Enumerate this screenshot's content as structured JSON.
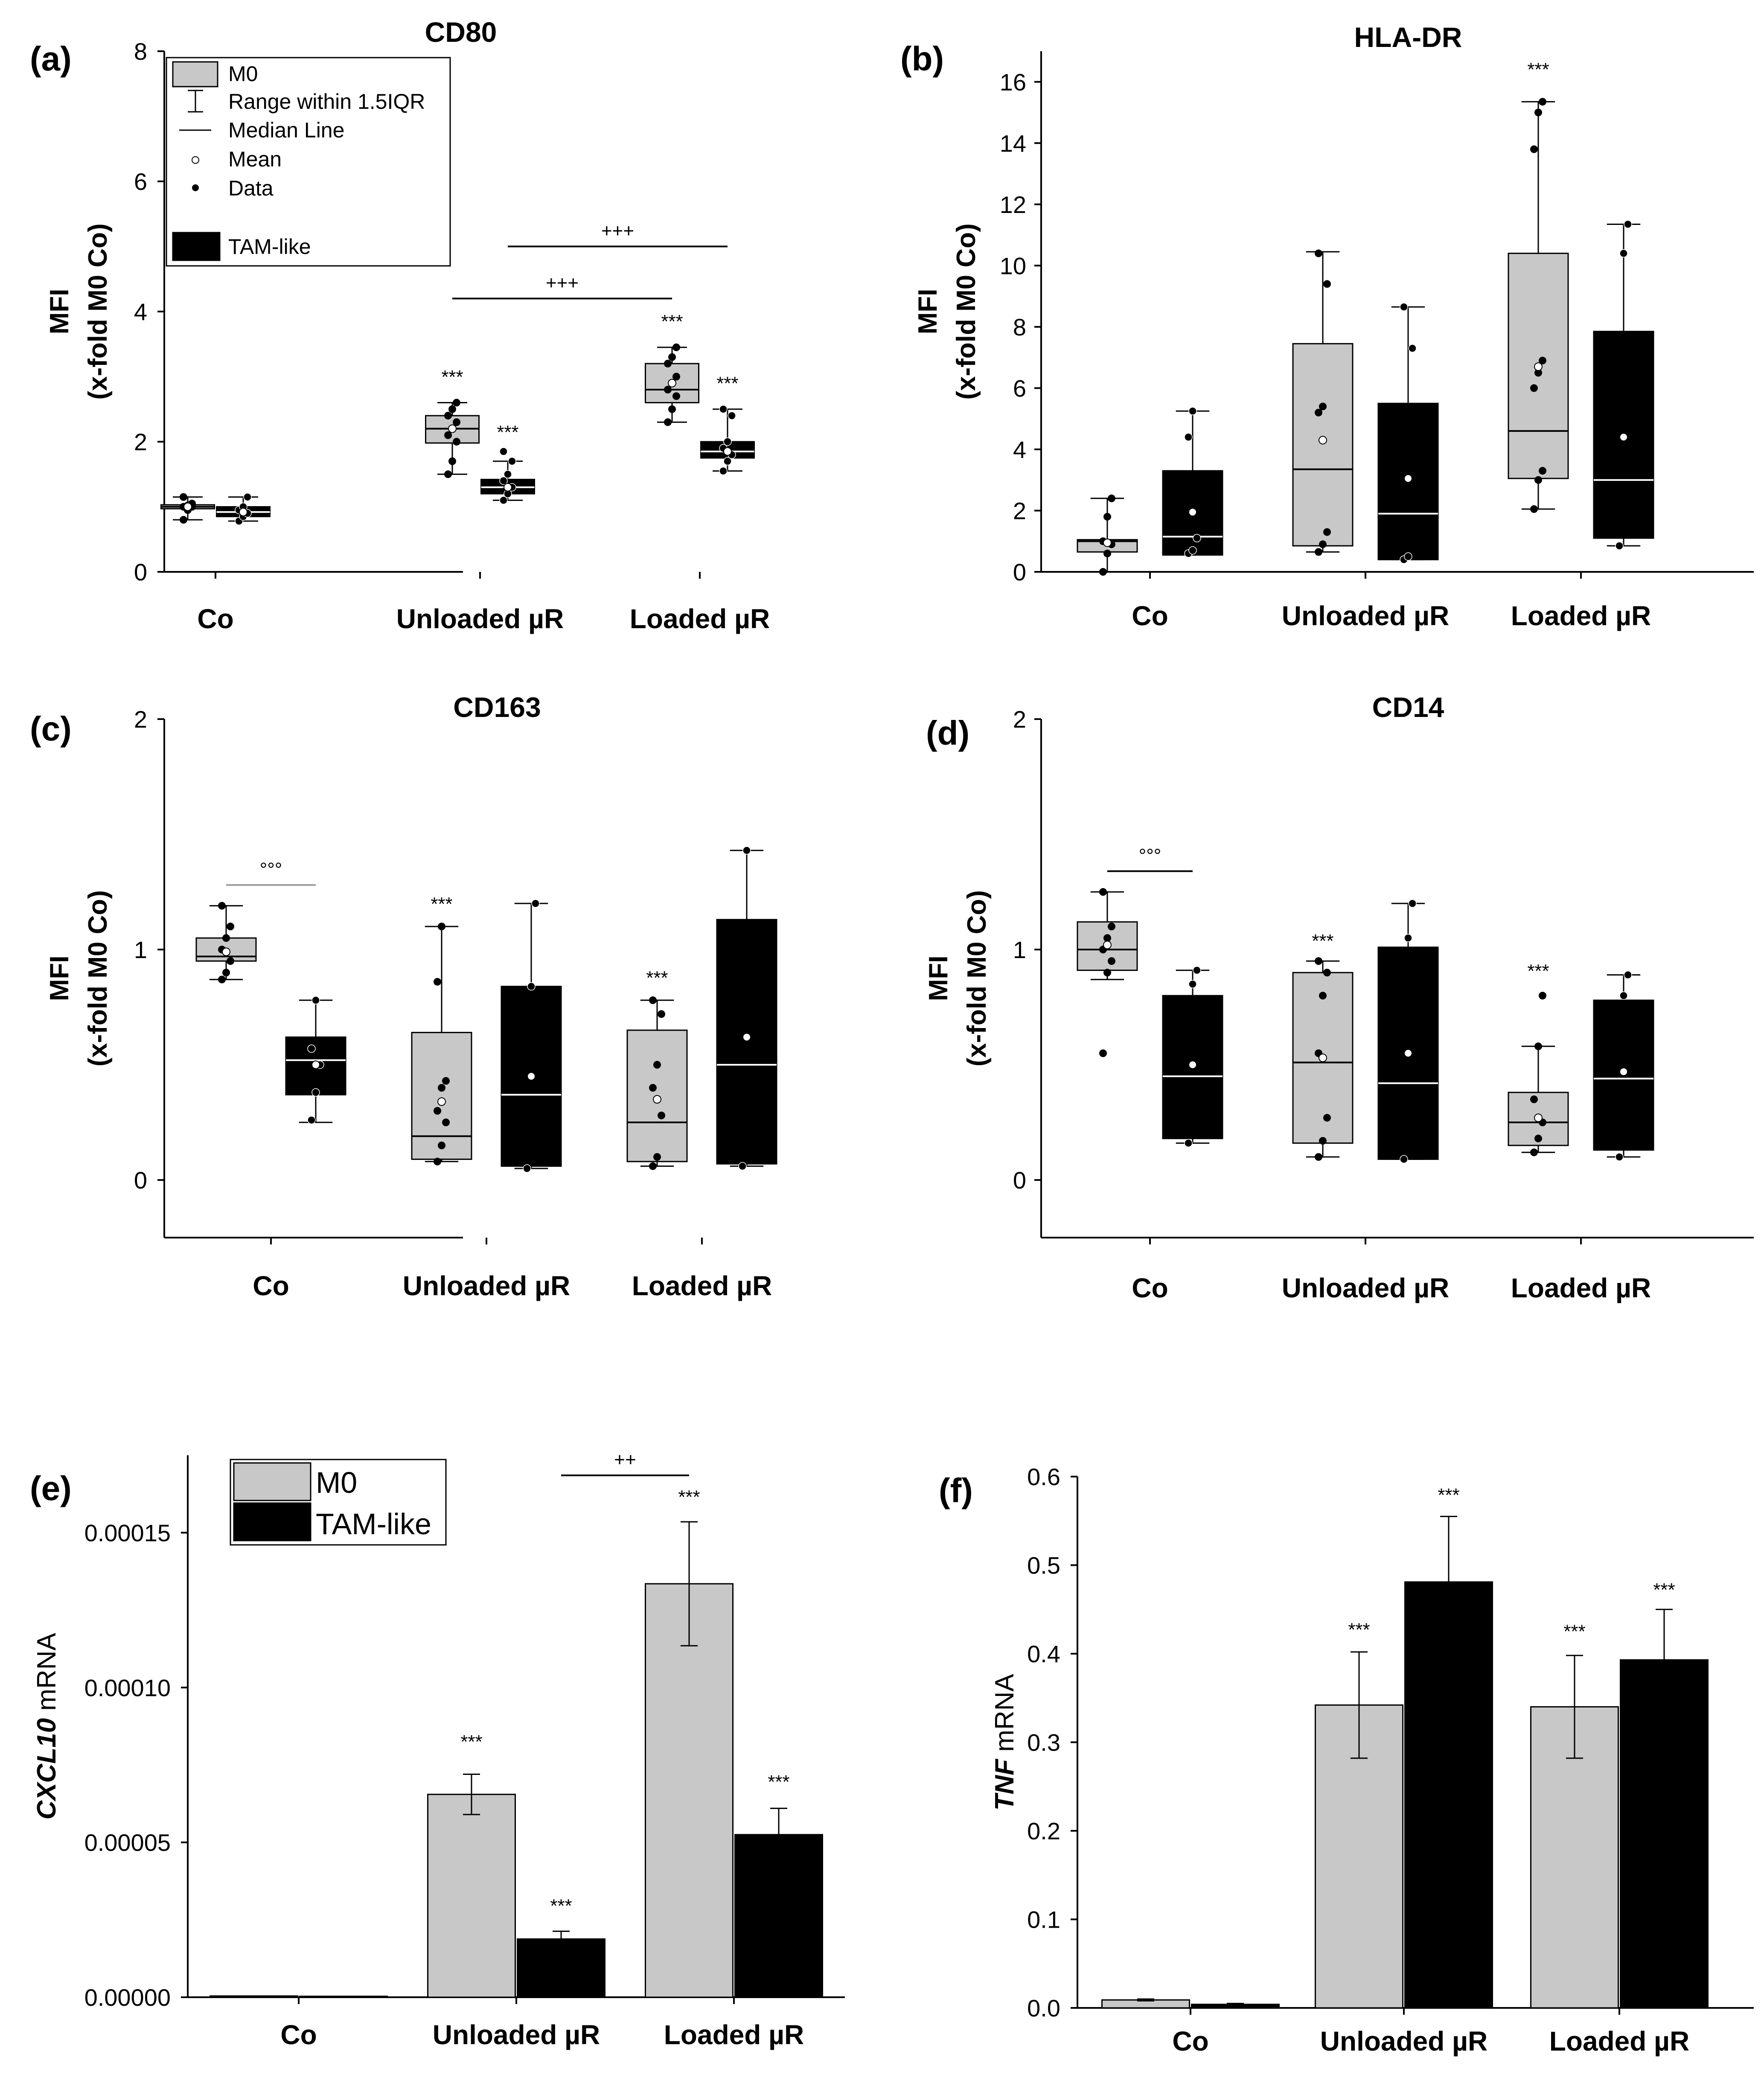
{
  "figure": {
    "legend_box": {
      "entries": [
        "M0",
        "Range within 1.5IQR",
        "Median Line",
        "Mean",
        "Data",
        "TAM-like"
      ]
    },
    "legend_bar": {
      "entries": [
        "M0",
        "TAM-like"
      ]
    }
  },
  "colors": {
    "m0": "#c8c8c8",
    "tam": "#000000",
    "axis": "#000000",
    "sig_line_c": "#9a9a9a"
  },
  "chart_data": [
    {
      "panel": "(a)",
      "type": "box",
      "title": "CD80",
      "ylabel": "MFI",
      "ylabel2": "(x-fold M0 Co)",
      "ylim": [
        0,
        8
      ],
      "yticks": [
        "0",
        "2",
        "4",
        "6",
        "8"
      ],
      "ytick_values": [
        0,
        2,
        4,
        6,
        8
      ],
      "categories": [
        "Co",
        "Unloaded µR",
        "Loaded µR"
      ],
      "series": [
        {
          "name": "M0",
          "boxes": [
            {
              "q1": 0.97,
              "med": 1.0,
              "q3": 1.03,
              "wlo": 0.8,
              "whi": 1.15,
              "mean": 1.0,
              "points": [
                0.8,
                0.95,
                1.0,
                1.0,
                1.02,
                1.05,
                1.15
              ]
            },
            {
              "q1": 1.98,
              "med": 2.2,
              "q3": 2.4,
              "wlo": 1.5,
              "whi": 2.6,
              "mean": 2.2,
              "points": [
                1.5,
                1.7,
                2.0,
                2.1,
                2.2,
                2.3,
                2.4,
                2.5,
                2.6
              ]
            },
            {
              "q1": 2.6,
              "med": 2.8,
              "q3": 3.2,
              "wlo": 2.3,
              "whi": 3.45,
              "mean": 2.9,
              "points": [
                2.3,
                2.5,
                2.7,
                2.8,
                2.9,
                3.0,
                3.2,
                3.3,
                3.45
              ]
            }
          ]
        },
        {
          "name": "TAM-like",
          "boxes": [
            {
              "q1": 0.85,
              "med": 0.92,
              "q3": 1.0,
              "wlo": 0.78,
              "whi": 1.15,
              "mean": 0.92,
              "points": [
                0.78,
                0.85,
                0.9,
                0.95,
                1.0,
                1.15
              ]
            },
            {
              "q1": 1.2,
              "med": 1.3,
              "q3": 1.42,
              "wlo": 1.1,
              "whi": 1.7,
              "mean": 1.3,
              "points": [
                1.1,
                1.2,
                1.3,
                1.4,
                1.5,
                1.7,
                1.85
              ]
            },
            {
              "q1": 1.75,
              "med": 1.85,
              "q3": 2.0,
              "wlo": 1.55,
              "whi": 2.5,
              "mean": 1.85,
              "points": [
                1.55,
                1.7,
                1.8,
                1.9,
                2.0,
                2.4,
                2.5
              ]
            }
          ]
        }
      ],
      "annotations": [
        {
          "text": "***",
          "cat": 1,
          "series": 0,
          "y": 2.9
        },
        {
          "text": "***",
          "cat": 1,
          "series": 1,
          "y": 2.05
        },
        {
          "text": "***",
          "cat": 2,
          "series": 0,
          "y": 3.75
        },
        {
          "text": "***",
          "cat": 2,
          "series": 1,
          "y": 2.8
        }
      ],
      "brackets": [
        {
          "text": "+++",
          "from": [
            1,
            0
          ],
          "to": [
            2,
            0
          ],
          "y": 4.2
        },
        {
          "text": "+++",
          "from": [
            1,
            1
          ],
          "to": [
            2,
            1
          ],
          "y": 5.0
        }
      ]
    },
    {
      "panel": "(b)",
      "type": "box",
      "title": "HLA-DR",
      "ylabel": "MFI",
      "ylabel2": "(x-fold M0 Co)",
      "ylim": [
        0,
        17
      ],
      "yticks": [
        "0",
        "2",
        "4",
        "6",
        "8",
        "10",
        "12",
        "14",
        "16"
      ],
      "ytick_values": [
        0,
        2,
        4,
        6,
        8,
        10,
        12,
        14,
        16
      ],
      "categories": [
        "Co",
        "Unloaded µR",
        "Loaded µR"
      ],
      "series": [
        {
          "name": "M0",
          "boxes": [
            {
              "q1": 0.65,
              "med": 1.0,
              "q3": 1.05,
              "wlo": 0.0,
              "whi": 2.4,
              "mean": 0.95,
              "points": [
                0.0,
                0.6,
                0.9,
                1.0,
                1.8,
                2.4
              ]
            },
            {
              "q1": 0.85,
              "med": 3.35,
              "q3": 7.45,
              "wlo": 0.65,
              "whi": 10.45,
              "mean": 4.3,
              "points": [
                0.65,
                0.9,
                1.3,
                5.2,
                5.4,
                9.4,
                10.4
              ]
            },
            {
              "q1": 3.05,
              "med": 4.6,
              "q3": 10.4,
              "wlo": 2.05,
              "whi": 15.35,
              "mean": 6.7,
              "points": [
                2.05,
                3.0,
                3.3,
                6.0,
                6.5,
                6.9,
                13.8,
                15.0,
                15.35
              ]
            }
          ]
        },
        {
          "name": "TAM-like",
          "boxes": [
            {
              "q1": 0.55,
              "med": 1.15,
              "q3": 3.3,
              "wlo": 0.55,
              "whi": 5.25,
              "mean": 1.95,
              "points": [
                0.6,
                0.7,
                1.1,
                4.4,
                5.25
              ]
            },
            {
              "q1": 0.4,
              "med": 1.9,
              "q3": 5.5,
              "wlo": 0.4,
              "whi": 8.65,
              "mean": 3.05,
              "points": [
                0.4,
                0.5,
                7.3,
                8.65
              ]
            },
            {
              "q1": 1.1,
              "med": 3.0,
              "q3": 7.85,
              "wlo": 0.85,
              "whi": 11.35,
              "mean": 4.4,
              "points": [
                0.85,
                10.4,
                11.35
              ]
            }
          ]
        }
      ],
      "annotations": [
        {
          "text": "***",
          "cat": 2,
          "series": 0,
          "y": 16.2
        }
      ],
      "brackets": []
    },
    {
      "panel": "(c)",
      "type": "box",
      "title": "CD163",
      "ylabel": "MFI",
      "ylabel2": "(x-fold M0 Co)",
      "ylim": [
        -0.25,
        2
      ],
      "yticks": [
        "0",
        "1",
        "2"
      ],
      "ytick_values": [
        0,
        1,
        2
      ],
      "categories": [
        "Co",
        "Unloaded µR",
        "Loaded µR"
      ],
      "series": [
        {
          "name": "M0",
          "boxes": [
            {
              "q1": 0.95,
              "med": 0.97,
              "q3": 1.05,
              "wlo": 0.87,
              "whi": 1.19,
              "mean": 0.99,
              "points": [
                0.87,
                0.9,
                0.95,
                1.0,
                1.05,
                1.1,
                1.19
              ]
            },
            {
              "q1": 0.09,
              "med": 0.19,
              "q3": 0.64,
              "wlo": 0.08,
              "whi": 1.1,
              "mean": 0.34,
              "points": [
                0.08,
                0.15,
                0.25,
                0.3,
                0.4,
                0.43,
                0.86,
                1.1
              ]
            },
            {
              "q1": 0.08,
              "med": 0.25,
              "q3": 0.65,
              "wlo": 0.06,
              "whi": 0.78,
              "mean": 0.35,
              "points": [
                0.06,
                0.1,
                0.28,
                0.4,
                0.5,
                0.72,
                0.78
              ]
            }
          ]
        },
        {
          "name": "TAM-like",
          "boxes": [
            {
              "q1": 0.37,
              "med": 0.52,
              "q3": 0.62,
              "wlo": 0.25,
              "whi": 0.78,
              "mean": 0.5,
              "points": [
                0.26,
                0.38,
                0.5,
                0.57,
                0.78
              ]
            },
            {
              "q1": 0.06,
              "med": 0.37,
              "q3": 0.84,
              "wlo": 0.05,
              "whi": 1.2,
              "mean": 0.45,
              "points": [
                0.05,
                0.84,
                1.2
              ]
            },
            {
              "q1": 0.07,
              "med": 0.5,
              "q3": 1.13,
              "wlo": 0.06,
              "whi": 1.43,
              "mean": 0.62,
              "points": [
                0.06,
                1.43
              ]
            }
          ]
        }
      ],
      "annotations": [
        {
          "text": "***",
          "cat": 1,
          "series": 0,
          "y": 1.17
        },
        {
          "text": "***",
          "cat": 2,
          "series": 0,
          "y": 0.85
        }
      ],
      "brackets": [
        {
          "text": "°°°",
          "from": [
            0,
            0
          ],
          "to": [
            0,
            1
          ],
          "y": 1.28,
          "color": "sig_line_c"
        }
      ]
    },
    {
      "panel": "(d)",
      "type": "box",
      "title": "CD14",
      "ylabel": "MFI",
      "ylabel2": "(x-fold M0 Co)",
      "ylim": [
        -0.25,
        2
      ],
      "yticks": [
        "0",
        "1",
        "2"
      ],
      "ytick_values": [
        0,
        1,
        2
      ],
      "categories": [
        "Co",
        "Unloaded µR",
        "Loaded µR"
      ],
      "series": [
        {
          "name": "M0",
          "boxes": [
            {
              "q1": 0.91,
              "med": 1.0,
              "q3": 1.12,
              "wlo": 0.87,
              "whi": 1.25,
              "mean": 1.02,
              "points": [
                0.55,
                0.9,
                0.95,
                1.0,
                1.05,
                1.1,
                1.25
              ]
            },
            {
              "q1": 0.16,
              "med": 0.51,
              "q3": 0.9,
              "wlo": 0.1,
              "whi": 0.95,
              "mean": 0.53,
              "points": [
                0.1,
                0.17,
                0.27,
                0.55,
                0.8,
                0.9,
                0.95
              ]
            },
            {
              "q1": 0.15,
              "med": 0.25,
              "q3": 0.38,
              "wlo": 0.12,
              "whi": 0.58,
              "mean": 0.27,
              "points": [
                0.12,
                0.18,
                0.25,
                0.35,
                0.58,
                0.8
              ]
            }
          ]
        },
        {
          "name": "TAM-like",
          "boxes": [
            {
              "q1": 0.18,
              "med": 0.45,
              "q3": 0.8,
              "wlo": 0.16,
              "whi": 0.91,
              "mean": 0.5,
              "points": [
                0.16,
                0.85,
                0.91
              ]
            },
            {
              "q1": 0.09,
              "med": 0.42,
              "q3": 1.01,
              "wlo": 0.09,
              "whi": 1.2,
              "mean": 0.55,
              "points": [
                0.09,
                1.05,
                1.2
              ]
            },
            {
              "q1": 0.13,
              "med": 0.44,
              "q3": 0.78,
              "wlo": 0.1,
              "whi": 0.89,
              "mean": 0.47,
              "points": [
                0.1,
                0.8,
                0.89
              ]
            }
          ]
        }
      ],
      "annotations": [
        {
          "text": "***",
          "cat": 1,
          "series": 0,
          "y": 1.01
        },
        {
          "text": "***",
          "cat": 2,
          "series": 0,
          "y": 0.88
        }
      ],
      "brackets": [
        {
          "text": "°°°",
          "from": [
            0,
            0
          ],
          "to": [
            0,
            1
          ],
          "y": 1.34
        }
      ]
    },
    {
      "panel": "(e)",
      "type": "bar",
      "title": "",
      "ylabel": "CXCL10",
      "ylabel2": " mRNA",
      "ylim": [
        0,
        0.000175
      ],
      "yticks": [
        "0.00000",
        "0.00005",
        "0.00010",
        "0.00015"
      ],
      "ytick_values": [
        0,
        5e-05,
        0.0001,
        0.00015
      ],
      "categories": [
        "Co",
        "Unloaded  µR",
        "Loaded µR"
      ],
      "series": [
        {
          "name": "M0",
          "values": [
            4e-07,
            6.55e-05,
            0.0001335
          ],
          "errors": [
            0,
            6.5e-06,
            2e-05
          ]
        },
        {
          "name": "TAM-like",
          "values": [
            3e-07,
            1.88e-05,
            5.25e-05
          ],
          "errors": [
            0,
            2.5e-06,
            8.5e-06
          ]
        }
      ],
      "annotations": [
        {
          "text": "***",
          "cat": 1,
          "series": 0,
          "y": 8.05e-05
        },
        {
          "text": "***",
          "cat": 1,
          "series": 1,
          "y": 2.75e-05
        },
        {
          "text": "***",
          "cat": 2,
          "series": 0,
          "y": 0.0001595
        },
        {
          "text": "***",
          "cat": 2,
          "series": 1,
          "y": 6.75e-05
        }
      ],
      "brackets": [
        {
          "text": "++",
          "from": [
            1,
            1
          ],
          "to": [
            2,
            0
          ],
          "y": 0.0001685
        }
      ]
    },
    {
      "panel": "(f)",
      "type": "bar",
      "title": "",
      "ylabel": "TNF",
      "ylabel2": " mRNA",
      "ylim": [
        0,
        0.6
      ],
      "yticks": [
        "0.0",
        "0.1",
        "0.2",
        "0.3",
        "0.4",
        "0.5",
        "0.6"
      ],
      "ytick_values": [
        0,
        0.1,
        0.2,
        0.3,
        0.4,
        0.5,
        0.6
      ],
      "categories": [
        "Co",
        "Unloaded µR",
        "Loaded µR"
      ],
      "series": [
        {
          "name": "M0",
          "values": [
            0.009,
            0.342,
            0.34
          ],
          "errors": [
            0.001,
            0.06,
            0.058
          ]
        },
        {
          "name": "TAM-like",
          "values": [
            0.004,
            0.481,
            0.393
          ],
          "errors": [
            0.001,
            0.074,
            0.057
          ]
        }
      ],
      "annotations": [
        {
          "text": "***",
          "cat": 1,
          "series": 0,
          "y": 0.42
        },
        {
          "text": "***",
          "cat": 1,
          "series": 1,
          "y": 0.572
        },
        {
          "text": "***",
          "cat": 2,
          "series": 0,
          "y": 0.418
        },
        {
          "text": "***",
          "cat": 2,
          "series": 1,
          "y": 0.465
        }
      ],
      "brackets": []
    }
  ]
}
